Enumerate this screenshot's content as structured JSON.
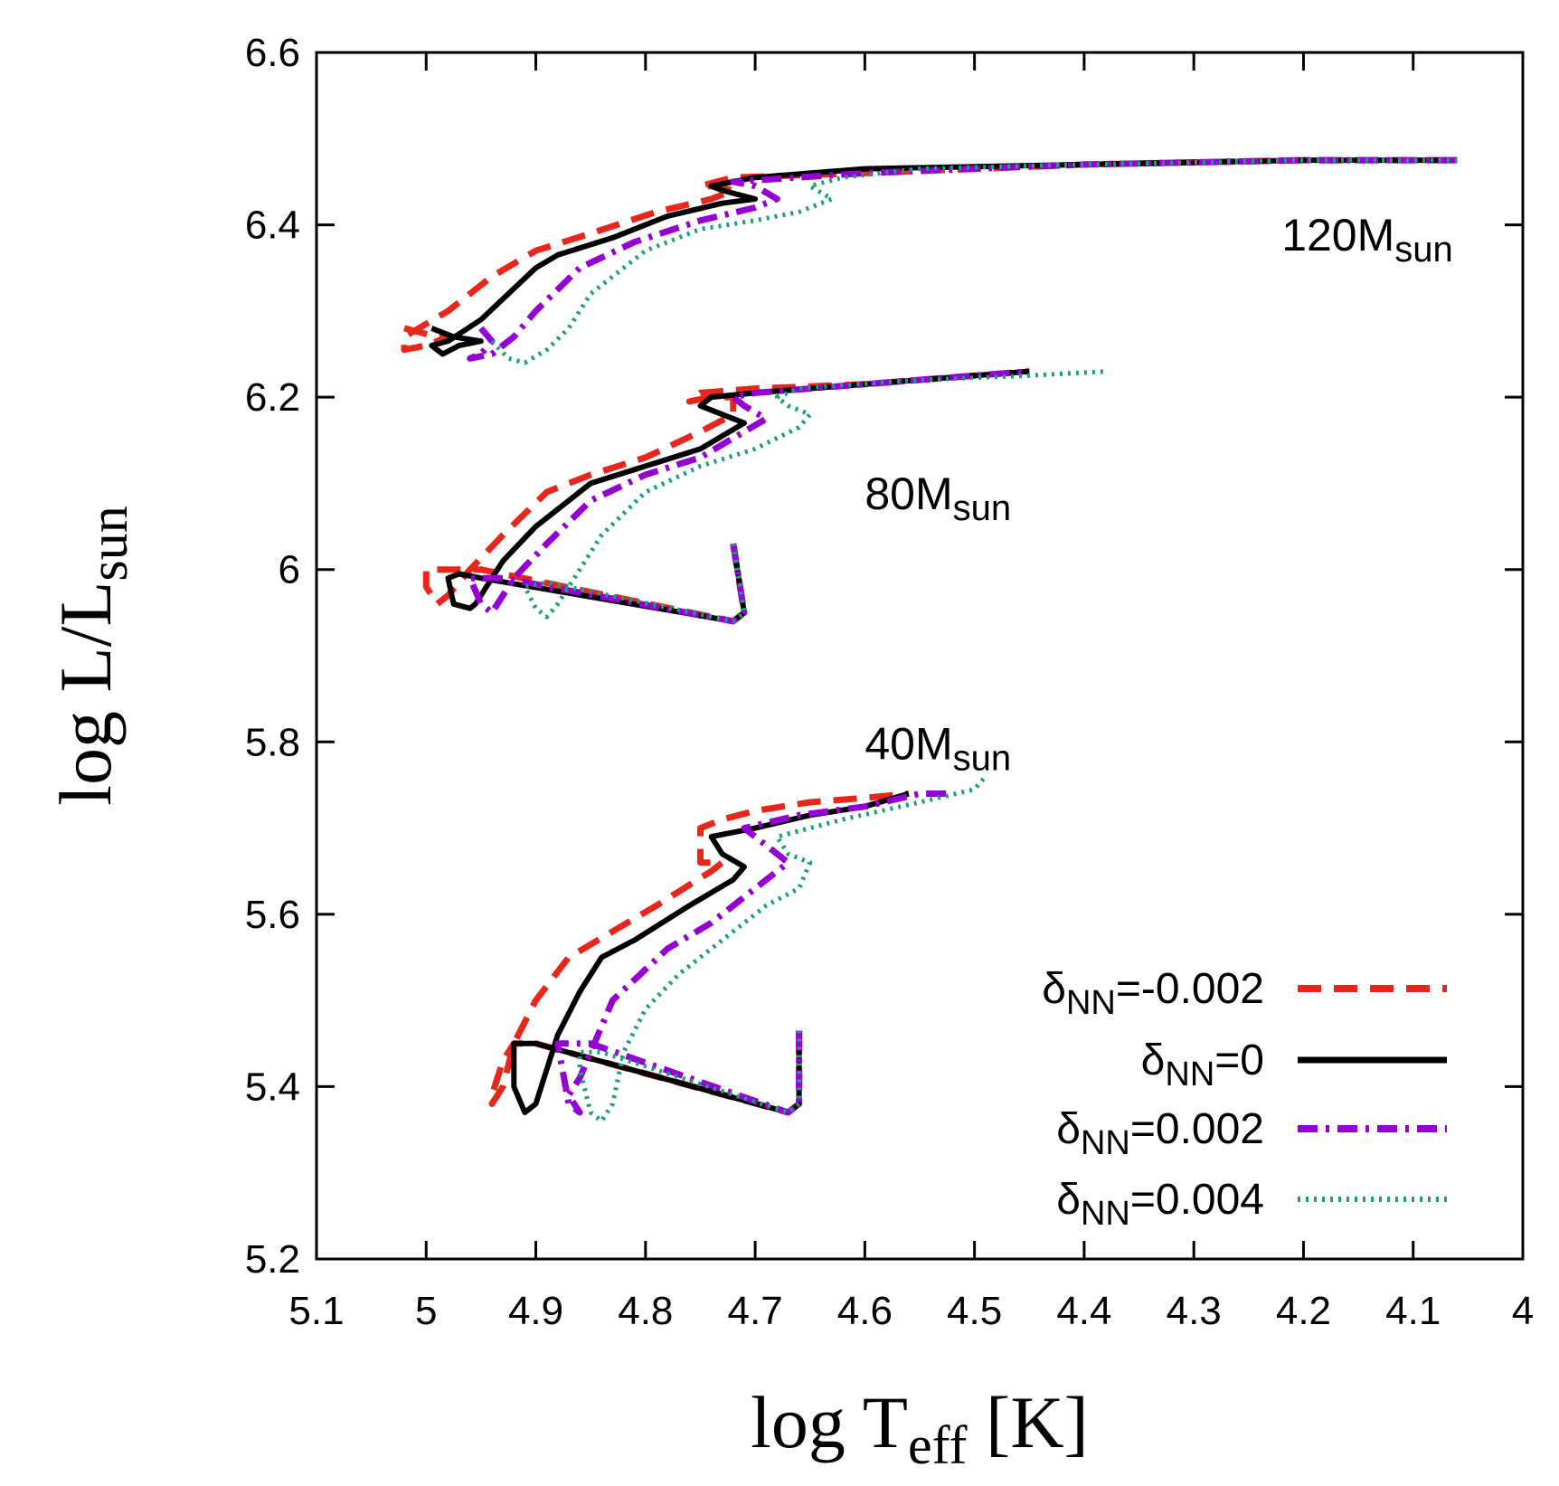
{
  "chart_data": {
    "type": "line",
    "xlabel": {
      "main": "log T",
      "sub": "eff",
      "tail": " [K]"
    },
    "ylabel": {
      "main": "log L/L",
      "sub": "sun"
    },
    "xlim": [
      5.1,
      4.0
    ],
    "ylim": [
      5.2,
      6.6
    ],
    "x_ticks": [
      "5.1",
      "5",
      "4.9",
      "4.8",
      "4.7",
      "4.6",
      "4.5",
      "4.4",
      "4.3",
      "4.2",
      "4.1",
      "4"
    ],
    "y_ticks": [
      "5.2",
      "5.4",
      "5.6",
      "5.8",
      "6",
      "6.2",
      "6.4",
      "6.6"
    ],
    "x_tick_values": [
      5.1,
      5.0,
      4.9,
      4.8,
      4.7,
      4.6,
      4.5,
      4.4,
      4.3,
      4.2,
      4.1,
      4.0
    ],
    "y_tick_values": [
      5.2,
      5.4,
      5.6,
      5.8,
      6.0,
      6.2,
      6.4,
      6.6
    ],
    "annotations": [
      {
        "main": "120M",
        "sub": "sun",
        "x": 4.22,
        "y": 6.37
      },
      {
        "main": "80M",
        "sub": "sun",
        "x": 4.6,
        "y": 6.07
      },
      {
        "main": "40M",
        "sub": "sun",
        "x": 4.6,
        "y": 5.78
      }
    ],
    "legend": {
      "placement": "bottom-right"
    },
    "series": [
      {
        "name_main": "δ",
        "name_sub": "NN",
        "name_tail": "=-0.002",
        "color": "#e8261c",
        "style": "dashed",
        "tracks": [
          [
            [
              4.66,
              5.465
            ],
            [
              4.66,
              5.38
            ],
            [
              4.67,
              5.37
            ],
            [
              4.9,
              5.45
            ],
            [
              4.92,
              5.45
            ],
            [
              4.93,
              5.43
            ],
            [
              4.94,
              5.39
            ],
            [
              4.94,
              5.38
            ],
            [
              4.93,
              5.4
            ],
            [
              4.92,
              5.45
            ],
            [
              4.9,
              5.5
            ],
            [
              4.87,
              5.55
            ],
            [
              4.83,
              5.58
            ],
            [
              4.79,
              5.61
            ],
            [
              4.74,
              5.65
            ],
            [
              4.73,
              5.66
            ],
            [
              4.75,
              5.66
            ],
            [
              4.75,
              5.7
            ],
            [
              4.73,
              5.71
            ],
            [
              4.7,
              5.72
            ],
            [
              4.65,
              5.73
            ],
            [
              4.6,
              5.735
            ],
            [
              4.56,
              5.74
            ]
          ],
          [
            [
              4.72,
              6.03
            ],
            [
              4.71,
              5.95
            ],
            [
              4.72,
              5.94
            ],
            [
              4.95,
              6.0
            ],
            [
              5.0,
              6.0
            ],
            [
              5.0,
              5.98
            ],
            [
              4.99,
              5.96
            ],
            [
              4.98,
              5.97
            ],
            [
              4.96,
              6.0
            ],
            [
              4.93,
              6.04
            ],
            [
              4.89,
              6.09
            ],
            [
              4.85,
              6.11
            ],
            [
              4.8,
              6.13
            ],
            [
              4.75,
              6.16
            ],
            [
              4.72,
              6.18
            ],
            [
              4.72,
              6.2
            ],
            [
              4.74,
              6.2
            ],
            [
              4.76,
              6.195
            ],
            [
              4.75,
              6.205
            ],
            [
              4.7,
              6.21
            ],
            [
              4.6,
              6.215
            ],
            [
              4.5,
              6.225
            ],
            [
              4.45,
              6.23
            ]
          ],
          [
            [
              5.02,
              6.28
            ],
            [
              4.99,
              6.27
            ],
            [
              4.98,
              6.27
            ],
            [
              5.0,
              6.26
            ],
            [
              5.02,
              6.255
            ],
            [
              5.02,
              6.27
            ],
            [
              4.98,
              6.3
            ],
            [
              4.94,
              6.34
            ],
            [
              4.9,
              6.37
            ],
            [
              4.85,
              6.39
            ],
            [
              4.79,
              6.415
            ],
            [
              4.74,
              6.43
            ],
            [
              4.72,
              6.44
            ],
            [
              4.74,
              6.445
            ],
            [
              4.75,
              6.445
            ],
            [
              4.72,
              6.455
            ],
            [
              4.6,
              6.46
            ],
            [
              4.4,
              6.47
            ],
            [
              4.2,
              6.475
            ],
            [
              4.06,
              6.475
            ]
          ]
        ]
      },
      {
        "name_main": "δ",
        "name_sub": "NN",
        "name_tail": "=0",
        "color": "#000000",
        "style": "solid",
        "tracks": [
          [
            [
              4.66,
              5.465
            ],
            [
              4.66,
              5.38
            ],
            [
              4.67,
              5.37
            ],
            [
              4.9,
              5.45
            ],
            [
              4.92,
              5.45
            ],
            [
              4.92,
              5.42
            ],
            [
              4.92,
              5.4
            ],
            [
              4.91,
              5.37
            ],
            [
              4.9,
              5.38
            ],
            [
              4.88,
              5.46
            ],
            [
              4.86,
              5.51
            ],
            [
              4.84,
              5.55
            ],
            [
              4.81,
              5.57
            ],
            [
              4.76,
              5.61
            ],
            [
              4.72,
              5.64
            ],
            [
              4.71,
              5.655
            ],
            [
              4.73,
              5.67
            ],
            [
              4.74,
              5.69
            ],
            [
              4.7,
              5.7
            ],
            [
              4.65,
              5.715
            ],
            [
              4.6,
              5.725
            ],
            [
              4.56,
              5.74
            ]
          ],
          [
            [
              4.72,
              6.03
            ],
            [
              4.71,
              5.95
            ],
            [
              4.72,
              5.94
            ],
            [
              4.95,
              5.99
            ],
            [
              4.97,
              5.995
            ],
            [
              4.98,
              5.99
            ],
            [
              4.975,
              5.96
            ],
            [
              4.96,
              5.955
            ],
            [
              4.955,
              5.96
            ],
            [
              4.94,
              5.99
            ],
            [
              4.93,
              6.01
            ],
            [
              4.9,
              6.05
            ],
            [
              4.85,
              6.1
            ],
            [
              4.8,
              6.12
            ],
            [
              4.75,
              6.14
            ],
            [
              4.71,
              6.17
            ],
            [
              4.73,
              6.18
            ],
            [
              4.75,
              6.19
            ],
            [
              4.74,
              6.2
            ],
            [
              4.7,
              6.205
            ],
            [
              4.6,
              6.215
            ],
            [
              4.5,
              6.225
            ],
            [
              4.45,
              6.23
            ]
          ],
          [
            [
              4.995,
              6.28
            ],
            [
              4.975,
              6.27
            ],
            [
              4.95,
              6.265
            ],
            [
              4.97,
              6.26
            ],
            [
              4.985,
              6.25
            ],
            [
              4.995,
              6.26
            ],
            [
              4.98,
              6.265
            ],
            [
              4.95,
              6.29
            ],
            [
              4.9,
              6.35
            ],
            [
              4.88,
              6.365
            ],
            [
              4.83,
              6.385
            ],
            [
              4.78,
              6.41
            ],
            [
              4.73,
              6.425
            ],
            [
              4.7,
              6.43
            ],
            [
              4.73,
              6.44
            ],
            [
              4.74,
              6.445
            ],
            [
              4.7,
              6.455
            ],
            [
              4.6,
              6.465
            ],
            [
              4.4,
              6.47
            ],
            [
              4.2,
              6.475
            ],
            [
              4.06,
              6.475
            ]
          ]
        ]
      },
      {
        "name_main": "δ",
        "name_sub": "NN",
        "name_tail": "=0.002",
        "color": "#9400d3",
        "style": "dashdot",
        "tracks": [
          [
            [
              4.66,
              5.465
            ],
            [
              4.66,
              5.38
            ],
            [
              4.67,
              5.37
            ],
            [
              4.85,
              5.45
            ],
            [
              4.88,
              5.45
            ],
            [
              4.87,
              5.38
            ],
            [
              4.86,
              5.37
            ],
            [
              4.87,
              5.39
            ],
            [
              4.86,
              5.41
            ],
            [
              4.84,
              5.47
            ],
            [
              4.83,
              5.5
            ],
            [
              4.78,
              5.56
            ],
            [
              4.74,
              5.59
            ],
            [
              4.7,
              5.63
            ],
            [
              4.67,
              5.66
            ],
            [
              4.69,
              5.68
            ],
            [
              4.71,
              5.7
            ],
            [
              4.66,
              5.715
            ],
            [
              4.6,
              5.725
            ],
            [
              4.55,
              5.74
            ],
            [
              4.52,
              5.74
            ]
          ],
          [
            [
              4.72,
              6.03
            ],
            [
              4.71,
              5.95
            ],
            [
              4.72,
              5.94
            ],
            [
              4.93,
              5.99
            ],
            [
              4.96,
              5.99
            ],
            [
              4.95,
              5.96
            ],
            [
              4.94,
              5.95
            ],
            [
              4.93,
              5.97
            ],
            [
              4.92,
              5.99
            ],
            [
              4.89,
              6.03
            ],
            [
              4.85,
              6.08
            ],
            [
              4.8,
              6.11
            ],
            [
              4.75,
              6.13
            ],
            [
              4.71,
              6.16
            ],
            [
              4.69,
              6.175
            ],
            [
              4.71,
              6.19
            ],
            [
              4.72,
              6.2
            ],
            [
              4.7,
              6.205
            ],
            [
              4.6,
              6.215
            ],
            [
              4.5,
              6.225
            ],
            [
              4.45,
              6.23
            ]
          ],
          [
            [
              4.95,
              6.28
            ],
            [
              4.94,
              6.265
            ],
            [
              4.95,
              6.25
            ],
            [
              4.96,
              6.245
            ],
            [
              4.94,
              6.25
            ],
            [
              4.92,
              6.27
            ],
            [
              4.9,
              6.3
            ],
            [
              4.86,
              6.35
            ],
            [
              4.81,
              6.38
            ],
            [
              4.75,
              6.405
            ],
            [
              4.7,
              6.42
            ],
            [
              4.68,
              6.43
            ],
            [
              4.7,
              6.445
            ],
            [
              4.72,
              6.45
            ],
            [
              4.6,
              6.46
            ],
            [
              4.4,
              6.47
            ],
            [
              4.2,
              6.475
            ],
            [
              4.06,
              6.475
            ]
          ]
        ]
      },
      {
        "name_main": "δ",
        "name_sub": "NN",
        "name_tail": "=0.004",
        "color": "#1a9e7e",
        "style": "dotted",
        "tracks": [
          [
            [
              4.66,
              5.465
            ],
            [
              4.66,
              5.38
            ],
            [
              4.67,
              5.37
            ],
            [
              4.84,
              5.44
            ],
            [
              4.86,
              5.44
            ],
            [
              4.86,
              5.42
            ],
            [
              4.85,
              5.37
            ],
            [
              4.84,
              5.36
            ],
            [
              4.83,
              5.38
            ],
            [
              4.82,
              5.44
            ],
            [
              4.8,
              5.49
            ],
            [
              4.77,
              5.53
            ],
            [
              4.73,
              5.57
            ],
            [
              4.69,
              5.61
            ],
            [
              4.66,
              5.63
            ],
            [
              4.65,
              5.66
            ],
            [
              4.67,
              5.67
            ],
            [
              4.68,
              5.69
            ],
            [
              4.62,
              5.71
            ],
            [
              4.55,
              5.73
            ],
            [
              4.5,
              5.745
            ],
            [
              4.49,
              5.76
            ]
          ],
          [
            [
              4.72,
              6.03
            ],
            [
              4.71,
              5.95
            ],
            [
              4.72,
              5.94
            ],
            [
              4.89,
              5.985
            ],
            [
              4.91,
              5.98
            ],
            [
              4.9,
              5.955
            ],
            [
              4.89,
              5.945
            ],
            [
              4.88,
              5.96
            ],
            [
              4.86,
              6.0
            ],
            [
              4.84,
              6.04
            ],
            [
              4.8,
              6.09
            ],
            [
              4.75,
              6.12
            ],
            [
              4.7,
              6.14
            ],
            [
              4.66,
              6.165
            ],
            [
              4.65,
              6.18
            ],
            [
              4.67,
              6.19
            ],
            [
              4.68,
              6.2
            ],
            [
              4.66,
              6.21
            ],
            [
              4.55,
              6.22
            ],
            [
              4.45,
              6.225
            ],
            [
              4.38,
              6.23
            ]
          ],
          [
            [
              4.94,
              6.265
            ],
            [
              4.925,
              6.245
            ],
            [
              4.91,
              6.24
            ],
            [
              4.89,
              6.255
            ],
            [
              4.87,
              6.28
            ],
            [
              4.85,
              6.32
            ],
            [
              4.8,
              6.37
            ],
            [
              4.75,
              6.395
            ],
            [
              4.7,
              6.405
            ],
            [
              4.66,
              6.415
            ],
            [
              4.63,
              6.43
            ],
            [
              4.65,
              6.445
            ],
            [
              4.62,
              6.455
            ],
            [
              4.55,
              6.465
            ],
            [
              4.4,
              6.47
            ],
            [
              4.2,
              6.475
            ],
            [
              4.06,
              6.475
            ]
          ]
        ]
      }
    ]
  }
}
